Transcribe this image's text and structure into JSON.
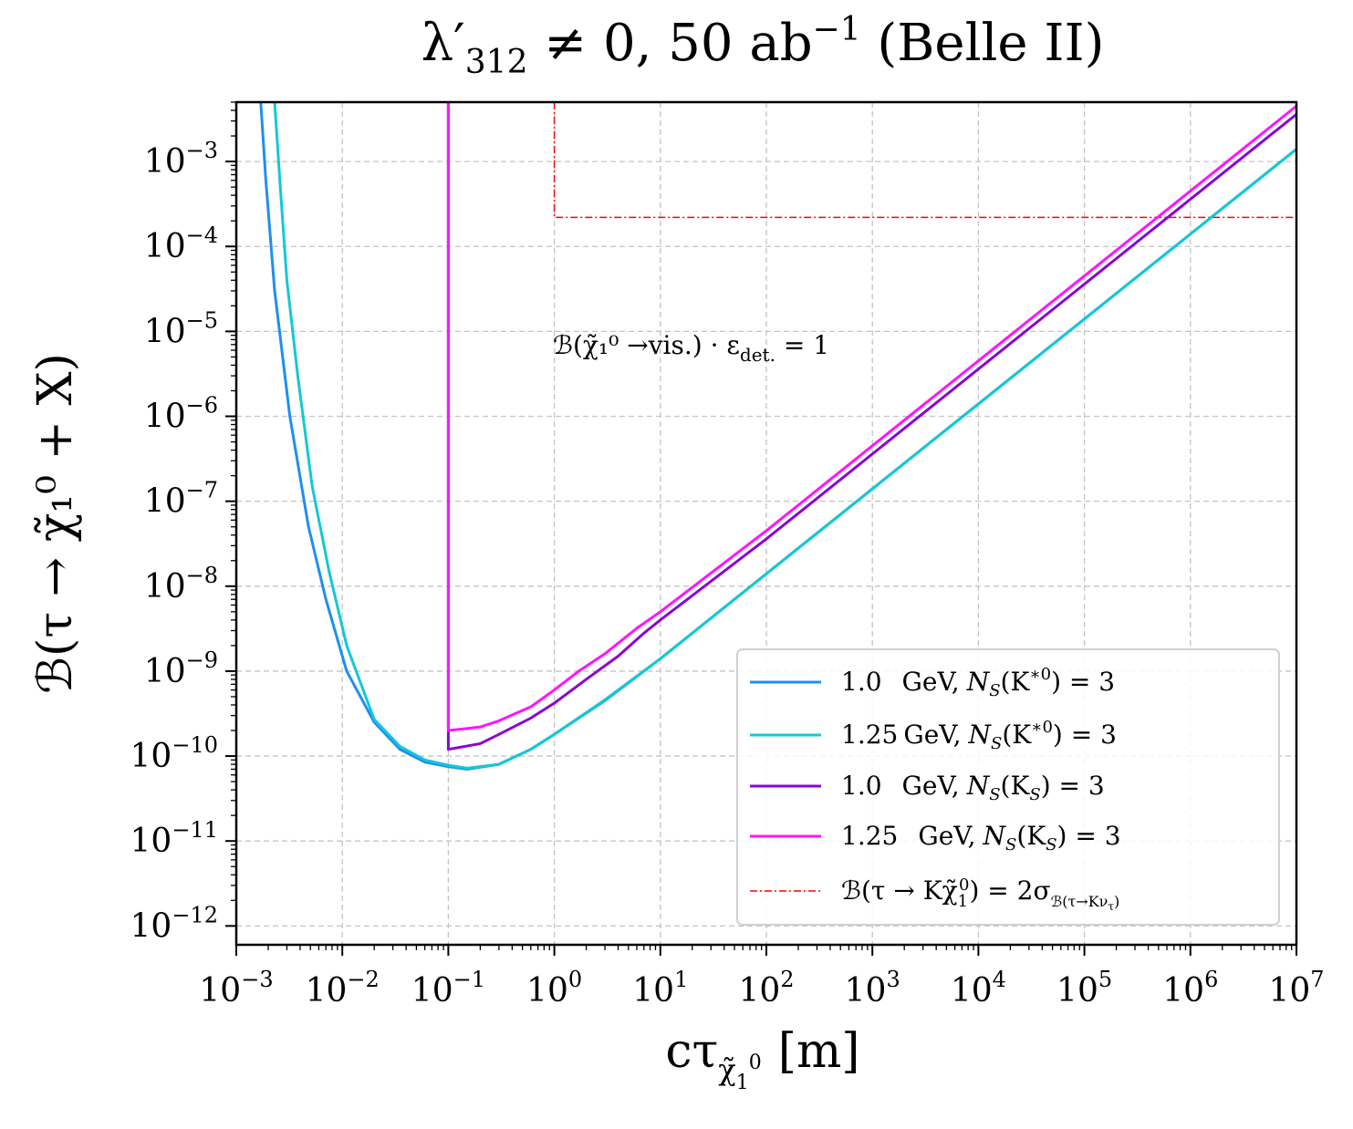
{
  "chart_data": {
    "type": "line",
    "title": {
      "main": "λ′",
      "sub": "312",
      "rest": " ≠ 0, 50 ab",
      "sup": "−1",
      "tail": " (Belle II)"
    },
    "xlabel": {
      "main": "cτ",
      "sub": "χ̃",
      "subsub": "1",
      "supsub": "0",
      "unit": "[m]"
    },
    "ylabel": "ℬ(τ → χ̃₁⁰ + X)",
    "xscale": "log",
    "yscale": "log",
    "xlim": [
      0.001,
      10000000
    ],
    "ylim": [
      6e-13,
      0.005
    ],
    "grid": true,
    "xticks": [
      {
        "exp": "−3",
        "value": 0.001
      },
      {
        "exp": "−2",
        "value": 0.01
      },
      {
        "exp": "−1",
        "value": 0.1
      },
      {
        "exp": "0",
        "value": 1
      },
      {
        "exp": "1",
        "value": 10
      },
      {
        "exp": "2",
        "value": 100
      },
      {
        "exp": "3",
        "value": 1000
      },
      {
        "exp": "4",
        "value": 10000
      },
      {
        "exp": "5",
        "value": 100000
      },
      {
        "exp": "6",
        "value": 1000000
      },
      {
        "exp": "7",
        "value": 10000000
      }
    ],
    "yticks": [
      {
        "exp": "−3",
        "value": 0.001
      },
      {
        "exp": "−4",
        "value": 0.0001
      },
      {
        "exp": "−5",
        "value": 1e-05
      },
      {
        "exp": "−6",
        "value": 1e-06
      },
      {
        "exp": "−7",
        "value": 1e-07
      },
      {
        "exp": "−8",
        "value": 1e-08
      },
      {
        "exp": "−9",
        "value": 1e-09
      },
      {
        "exp": "−10",
        "value": 1e-10
      },
      {
        "exp": "−11",
        "value": 1e-11
      },
      {
        "exp": "−12",
        "value": 1e-12
      }
    ],
    "tick_base": "10",
    "annotation": {
      "text": "ℬ(χ̃₁⁰ →vis.) · ε",
      "sub": "det.",
      "tail": " = 1"
    },
    "series": [
      {
        "name": "1.0  GeV, N_S(K*0) = 3",
        "legend": {
          "mass": "1.0",
          "unit": "GeV,",
          "label": "N",
          "sub": "S",
          "arg": "(K",
          "sup": "∗0",
          "close": ")  = 3"
        },
        "color": "#1f8ff0",
        "x": [
          0.0017,
          0.0019,
          0.0023,
          0.0032,
          0.0048,
          0.007,
          0.011,
          0.02,
          0.035,
          0.06,
          0.1,
          0.15,
          0.3,
          0.6,
          1,
          3,
          10,
          100,
          1000,
          10000,
          100000,
          1000000,
          10000000
        ],
        "y": [
          0.005,
          0.0006,
          3e-05,
          1e-06,
          5e-08,
          7e-09,
          1e-09,
          2.5e-10,
          1.2e-10,
          8.5e-11,
          7.5e-11,
          7e-11,
          8e-11,
          1.2e-10,
          1.8e-10,
          4.5e-10,
          1.4e-09,
          1.4e-08,
          1.4e-07,
          1.4e-06,
          1.4e-05,
          0.00014,
          0.0014
        ]
      },
      {
        "name": "1.25 GeV, N_S(K*0) = 3",
        "legend": {
          "mass": "1.25",
          "unit": "GeV,",
          "label": "N",
          "sub": "S",
          "arg": "(K",
          "sup": "∗0",
          "close": ")  = 3"
        },
        "color": "#14c8d4",
        "x": [
          0.0023,
          0.0026,
          0.003,
          0.0038,
          0.0052,
          0.0075,
          0.011,
          0.02,
          0.035,
          0.06,
          0.1,
          0.15,
          0.3,
          0.6,
          1,
          3,
          10,
          100,
          1000,
          10000,
          100000,
          1000000,
          10000000
        ],
        "y": [
          0.005,
          0.0005,
          4e-05,
          3e-06,
          1.5e-07,
          1.5e-08,
          2e-09,
          2.7e-10,
          1.3e-10,
          9e-11,
          7.8e-11,
          7.2e-11,
          8e-11,
          1.2e-10,
          1.8e-10,
          4.6e-10,
          1.4e-09,
          1.4e-08,
          1.4e-07,
          1.4e-06,
          1.4e-05,
          0.00014,
          0.0014
        ]
      },
      {
        "name": "1.0  GeV, N_S(K_S) = 3",
        "legend": {
          "mass": "1.0",
          "unit": "GeV,",
          "label": "N",
          "sub": "S",
          "arg": "(K",
          "sup": "",
          "close": ") = 3"
        },
        "color": "#8a05d6",
        "x": [
          0.1,
          0.1,
          0.1,
          0.2,
          0.3,
          0.6,
          1,
          2,
          4,
          7,
          10,
          100,
          1000,
          10000,
          100000,
          1000000,
          10000000
        ],
        "y": [
          0.005,
          0.0001,
          1.2e-10,
          1.4e-10,
          1.8e-10,
          2.8e-10,
          4.2e-10,
          8e-10,
          1.5e-09,
          2.8e-09,
          4e-09,
          3.6e-08,
          3.6e-07,
          3.6e-06,
          3.6e-05,
          0.00036,
          0.0036
        ]
      },
      {
        "name": "1.25  GeV, N_S(K_S) = 3",
        "legend": {
          "mass": "1.25",
          "unit": "GeV,",
          "label": "N",
          "sub": "S",
          "arg": "(K",
          "sup": "",
          "close": ") = 3"
        },
        "color": "#ff14ff",
        "x": [
          0.1,
          0.1,
          0.1,
          0.2,
          0.3,
          0.6,
          1,
          1.7,
          3,
          6,
          10,
          100,
          1000,
          10000,
          100000,
          1000000,
          10000000
        ],
        "y": [
          0.005,
          0.0001,
          2e-10,
          2.2e-10,
          2.6e-10,
          3.8e-10,
          6e-10,
          1e-09,
          1.6e-09,
          3.2e-09,
          5e-09,
          4.5e-08,
          4.5e-07,
          4.5e-06,
          4.5e-05,
          0.00045,
          0.0045
        ]
      }
    ],
    "bound": {
      "name": "ℬ(τ → Kχ̃₁⁰) = 2σ_ℬ(τ→Kν_τ)",
      "legend": {
        "lhs": "ℬ(τ → Kχ̃",
        "sub1": "1",
        "sup1": "0",
        "mid": ") = 2σ",
        "sub2": "ℬ(τ→Kν",
        "sub3": "τ",
        "sub2close": ")"
      },
      "color": "#ff0000",
      "x_start": 1,
      "value": 0.00022
    }
  }
}
